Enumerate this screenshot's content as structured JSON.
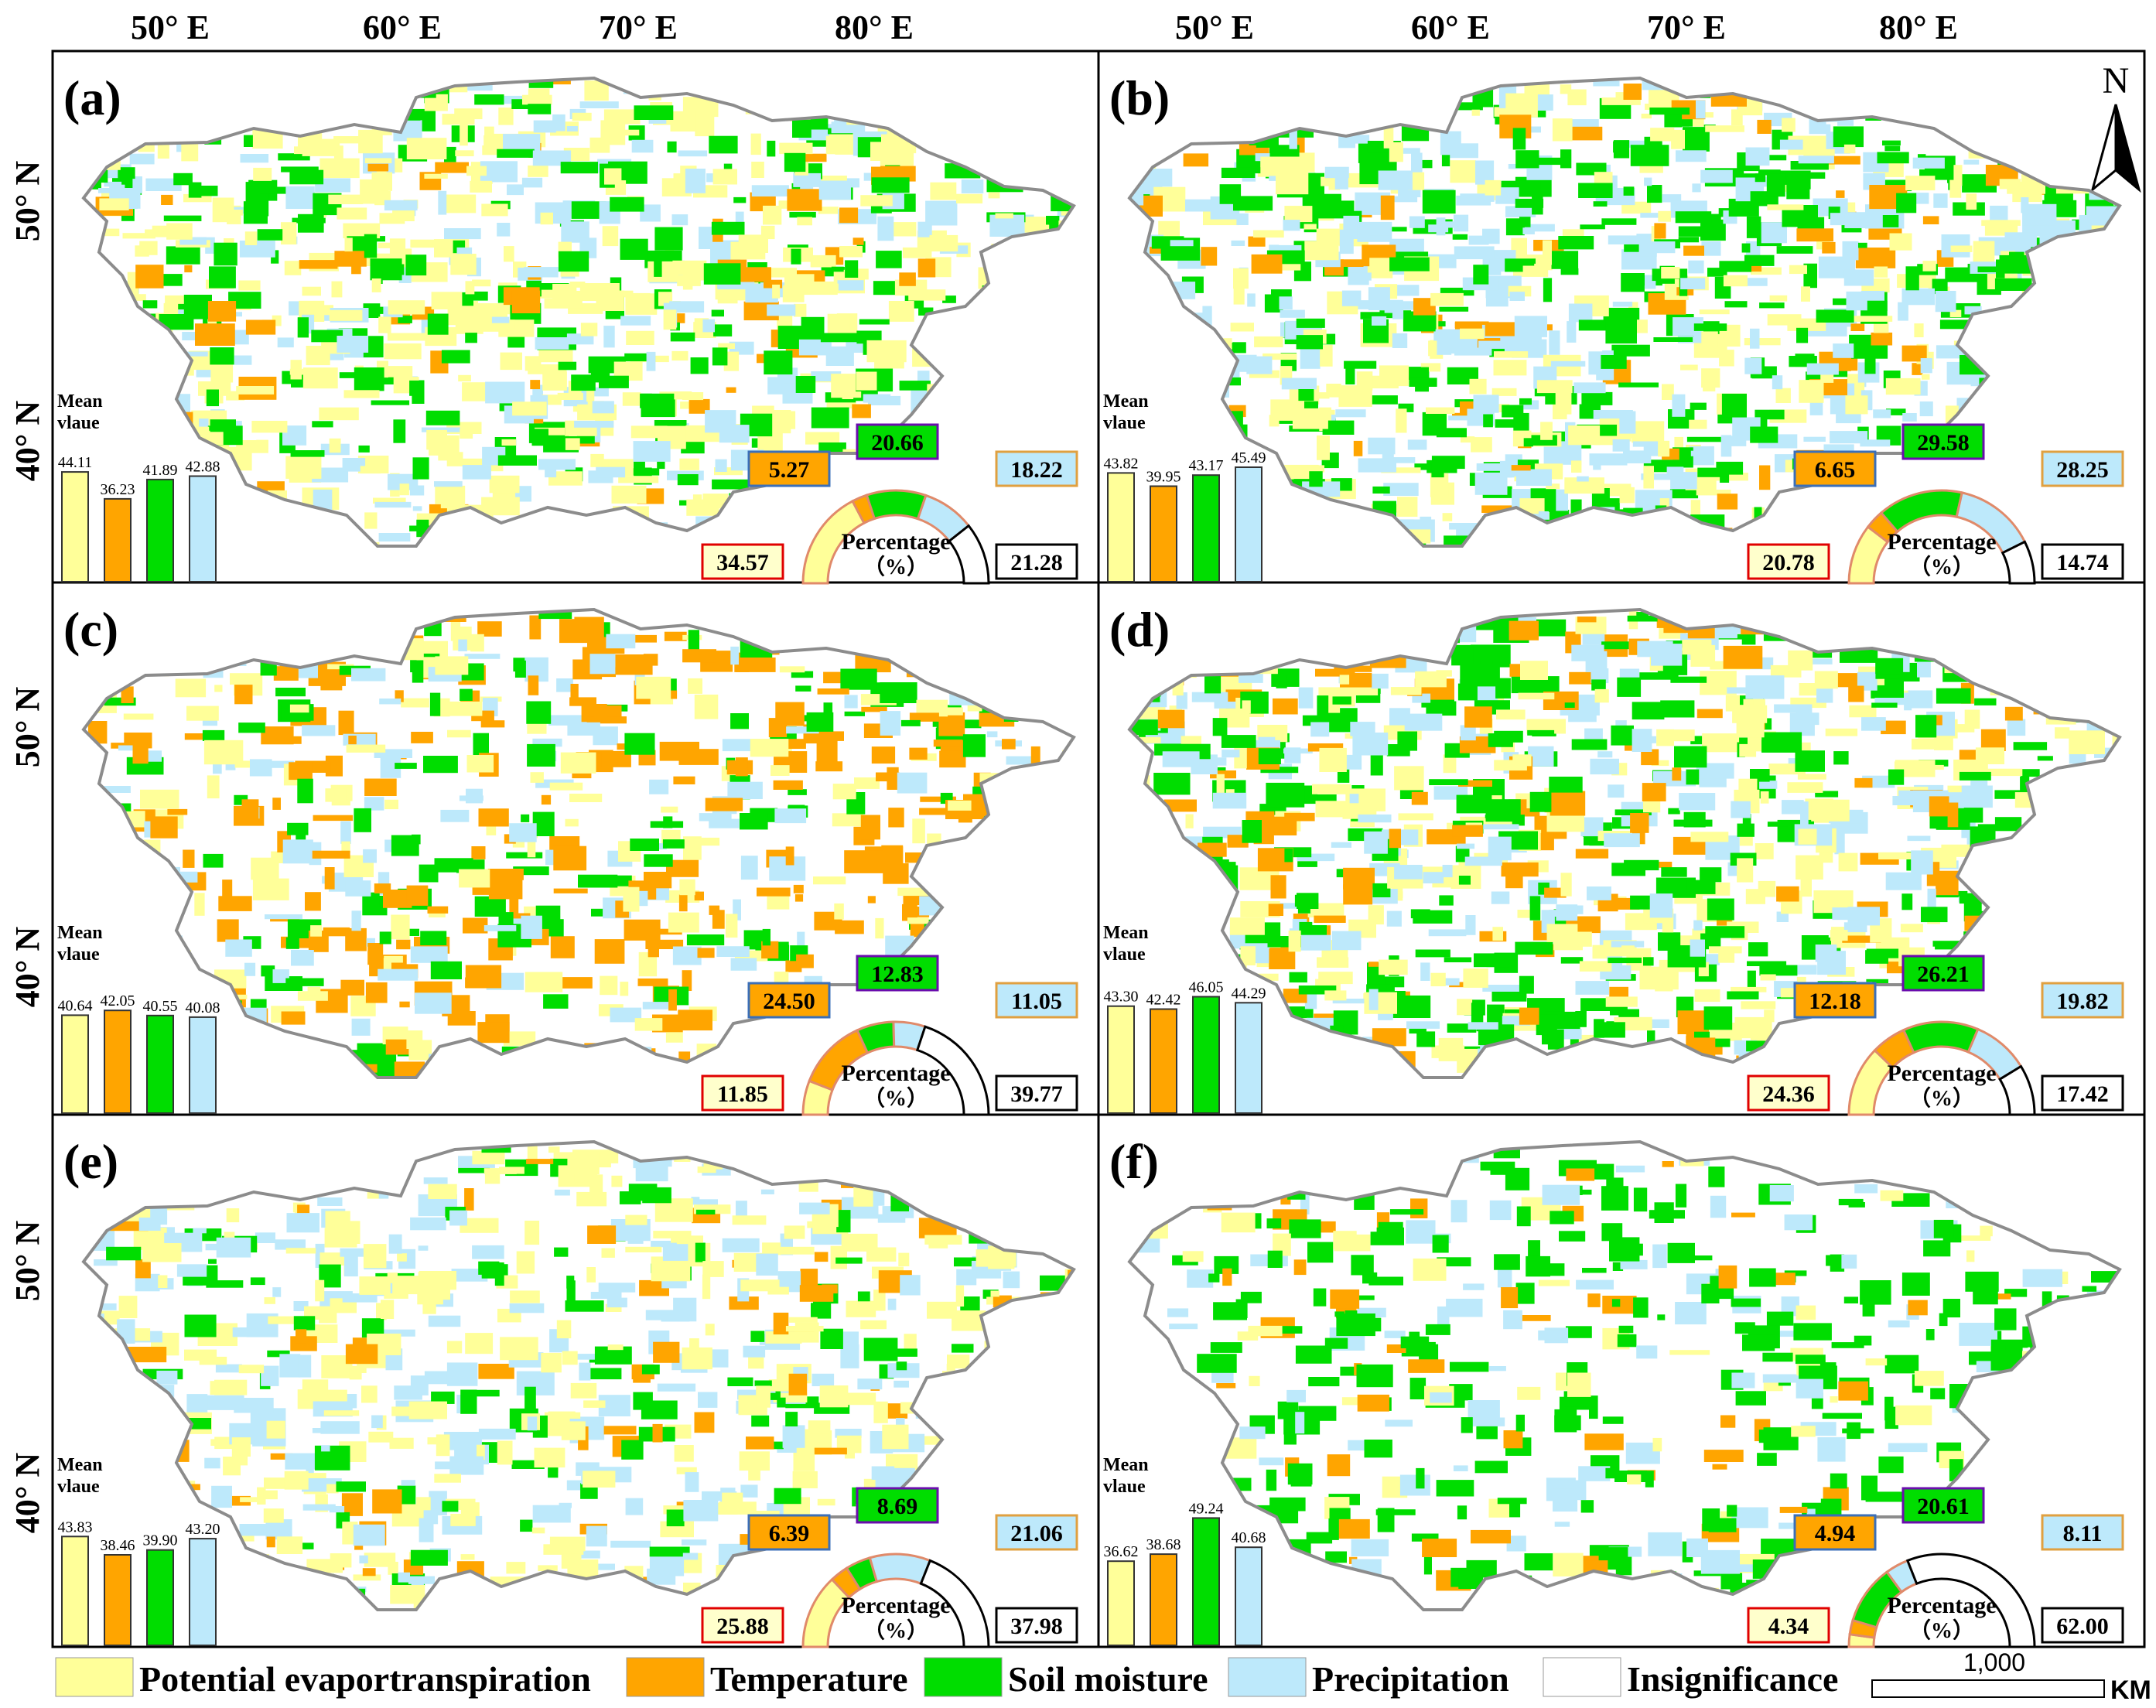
{
  "colors": {
    "pet": "#FFFF99",
    "temp": "#FFA500",
    "sm": "#00DD00",
    "pre": "#BDE9FB",
    "insig": "#FFFFFF",
    "border": "#8c8c8c"
  },
  "axes": {
    "lon_top_left": [
      "50° E",
      "60° E",
      "70° E",
      "80° E"
    ],
    "lon_top_right": [
      "50° E",
      "60° E",
      "70° E",
      "80° E"
    ],
    "lat_left": [
      "50° N",
      "40° N",
      "50° N",
      "40° N",
      "50° N",
      "40° N"
    ]
  },
  "north_label": "N",
  "panels": [
    {
      "label": "(a)",
      "mean_title": [
        "Mean",
        "vlaue"
      ],
      "means": {
        "pet": "44.11",
        "temp": "36.23",
        "sm": "41.89",
        "pre": "42.88"
      },
      "mean_values": [
        44.11,
        36.23,
        41.89,
        42.88
      ],
      "pct": {
        "pet": "34.57",
        "temp": "5.27",
        "sm": "20.66",
        "pre": "18.22",
        "insig": "21.28"
      },
      "pct_values": [
        34.57,
        5.27,
        20.66,
        18.22,
        21.28
      ],
      "pct_title": [
        "Percentage",
        "（%）"
      ]
    },
    {
      "label": "(b)",
      "mean_title": [
        "Mean",
        "vlaue"
      ],
      "means": {
        "pet": "43.82",
        "temp": "39.95",
        "sm": "43.17",
        "pre": "45.49"
      },
      "mean_values": [
        43.82,
        39.95,
        43.17,
        45.49
      ],
      "pct": {
        "pet": "20.78",
        "temp": "6.65",
        "sm": "29.58",
        "pre": "28.25",
        "insig": "14.74"
      },
      "pct_values": [
        20.78,
        6.65,
        29.58,
        28.25,
        14.74
      ],
      "pct_title": [
        "Percentage",
        "（%）"
      ]
    },
    {
      "label": "(c)",
      "mean_title": [
        "Mean",
        "vlaue"
      ],
      "means": {
        "pet": "40.64",
        "temp": "42.05",
        "sm": "40.55",
        "pre": "40.08"
      },
      "mean_values": [
        40.64,
        42.05,
        40.55,
        40.08
      ],
      "pct": {
        "pet": "11.85",
        "temp": "24.50",
        "sm": "12.83",
        "pre": "11.05",
        "insig": "39.77"
      },
      "pct_values": [
        11.85,
        24.5,
        12.83,
        11.05,
        39.77
      ],
      "pct_title": [
        "Percentage",
        "（%）"
      ]
    },
    {
      "label": "(d)",
      "mean_title": [
        "Mean",
        "vlaue"
      ],
      "means": {
        "pet": "43.30",
        "temp": "42.42",
        "sm": "46.05",
        "pre": "44.29"
      },
      "mean_values": [
        43.3,
        42.42,
        46.05,
        44.29
      ],
      "pct": {
        "pet": "24.36",
        "temp": "12.18",
        "sm": "26.21",
        "pre": "19.82",
        "insig": "17.42"
      },
      "pct_values": [
        24.36,
        12.18,
        26.21,
        19.82,
        17.42
      ],
      "pct_title": [
        "Percentage",
        "（%）"
      ]
    },
    {
      "label": "(e)",
      "mean_title": [
        "Mean",
        "vlaue"
      ],
      "means": {
        "pet": "43.83",
        "temp": "38.46",
        "sm": "39.90",
        "pre": "43.20"
      },
      "mean_values": [
        43.83,
        38.46,
        39.9,
        43.2
      ],
      "pct": {
        "pet": "25.88",
        "temp": "6.39",
        "sm": "8.69",
        "pre": "21.06",
        "insig": "37.98"
      },
      "pct_values": [
        25.88,
        6.39,
        8.69,
        21.06,
        37.98
      ],
      "pct_title": [
        "Percentage",
        "（%）"
      ]
    },
    {
      "label": "(f)",
      "mean_title": [
        "Mean",
        "vlaue"
      ],
      "means": {
        "pet": "36.62",
        "temp": "38.68",
        "sm": "49.24",
        "pre": "40.68"
      },
      "mean_values": [
        36.62,
        38.68,
        49.24,
        40.68
      ],
      "pct": {
        "pet": "4.34",
        "temp": "4.94",
        "sm": "20.61",
        "pre": "8.11",
        "insig": "62.00"
      },
      "pct_values": [
        4.34,
        4.94,
        20.61,
        8.11,
        62.0
      ],
      "pct_title": [
        "Percentage",
        "（%）"
      ]
    }
  ],
  "legend": {
    "pet": "Potential evaportranspiration",
    "temp": "Temperature",
    "sm": "Soil moisture",
    "pre": "Precipitation",
    "insig": "Insignificance"
  },
  "scale": {
    "value": "1,000",
    "unit": "KM"
  }
}
